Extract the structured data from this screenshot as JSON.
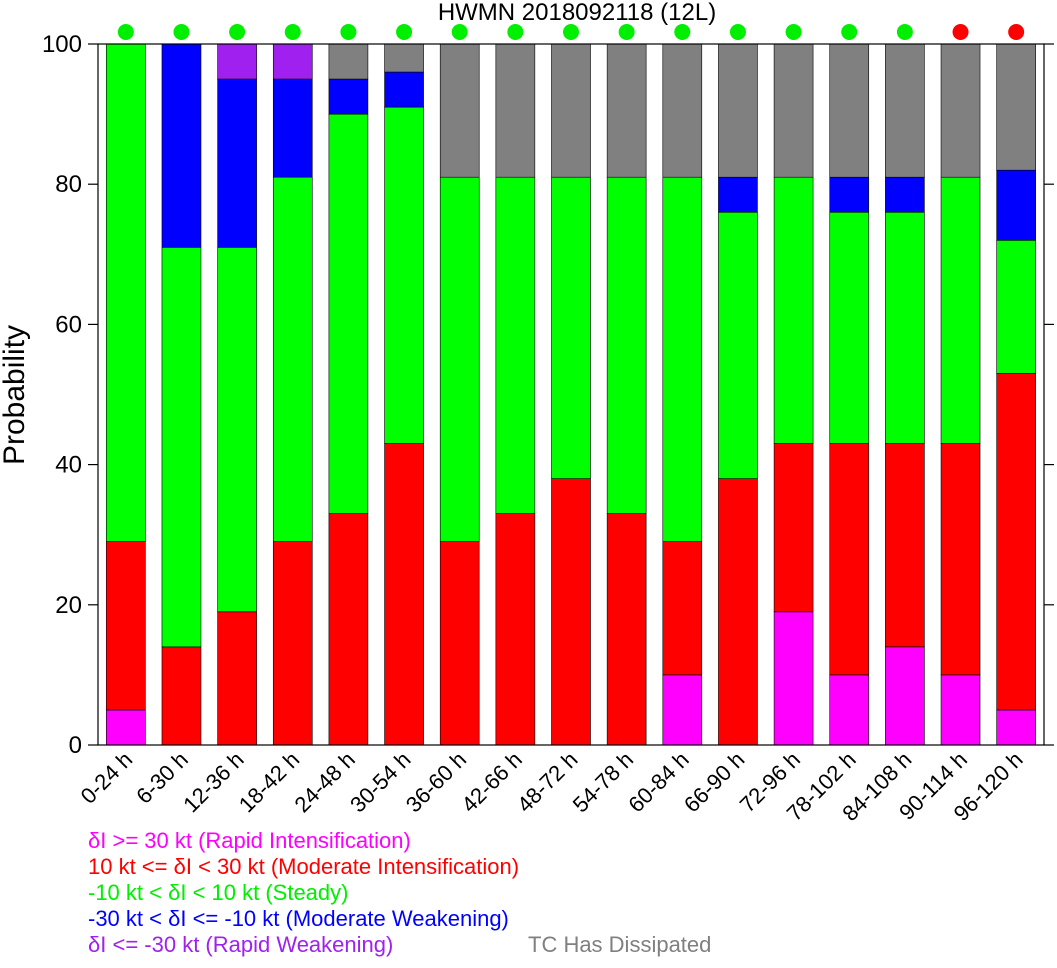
{
  "chart_data": {
    "type": "bar",
    "stacked": true,
    "title": "HWMN 2018092118  (12L)",
    "ylabel": "Probability",
    "xlabel": "",
    "ylim": [
      0,
      100
    ],
    "yticks": [
      0,
      20,
      40,
      60,
      80,
      100
    ],
    "categories": [
      "0-24 h",
      "6-30 h",
      "12-36 h",
      "18-42 h",
      "24-48 h",
      "30-54 h",
      "36-60 h",
      "42-66 h",
      "48-72 h",
      "54-78 h",
      "60-84 h",
      "66-90 h",
      "72-96 h",
      "78-102 h",
      "84-108 h",
      "90-114 h",
      "96-120 h"
    ],
    "series": [
      {
        "key": "ri",
        "color": "#ff00ff",
        "values": [
          5,
          0,
          0,
          0,
          0,
          0,
          0,
          0,
          0,
          0,
          10,
          0,
          19,
          10,
          14,
          10,
          5
        ]
      },
      {
        "key": "mi",
        "color": "#ff0000",
        "values": [
          24,
          14,
          19,
          29,
          33,
          43,
          29,
          33,
          38,
          33,
          19,
          38,
          24,
          33,
          29,
          33,
          48
        ]
      },
      {
        "key": "steady",
        "color": "#00ff00",
        "values": [
          71,
          57,
          52,
          52,
          57,
          48,
          52,
          48,
          43,
          48,
          52,
          38,
          38,
          33,
          33,
          38,
          19
        ]
      },
      {
        "key": "mw",
        "color": "#0000ff",
        "values": [
          0,
          29,
          24,
          14,
          5,
          5,
          0,
          0,
          0,
          0,
          0,
          5,
          0,
          5,
          5,
          0,
          10
        ]
      },
      {
        "key": "rw",
        "color": "#a020f0",
        "values": [
          0,
          0,
          5,
          5,
          0,
          0,
          0,
          0,
          0,
          0,
          0,
          0,
          0,
          0,
          0,
          0,
          0
        ]
      },
      {
        "key": "dissipated",
        "color": "#808080",
        "values": [
          0,
          0,
          0,
          0,
          5,
          4,
          19,
          19,
          19,
          19,
          19,
          19,
          19,
          19,
          19,
          19,
          18
        ]
      }
    ],
    "status_dots": [
      "green",
      "green",
      "green",
      "green",
      "green",
      "green",
      "green",
      "green",
      "green",
      "green",
      "green",
      "green",
      "green",
      "green",
      "green",
      "red",
      "red"
    ],
    "status_colors": {
      "green": "#00ee00",
      "red": "#ff0000"
    },
    "grid": false,
    "legend_placement": "bottom-left"
  },
  "legend": {
    "ri": "δI >= 30 kt (Rapid Intensification)",
    "mi": "10 kt <= δI < 30 kt (Moderate Intensification)",
    "steady": "-10 kt < δI < 10 kt (Steady)",
    "mw": "-30 kt < δI <= -10 kt (Moderate Weakening)",
    "rw": "δI <= -30 kt (Rapid Weakening)",
    "dissipated": "TC Has Dissipated"
  },
  "colors": {
    "ri": "#ff00ff",
    "mi": "#ff0000",
    "steady": "#00ff00",
    "mw": "#0000ff",
    "rw": "#a020f0",
    "dissipated": "#808080"
  }
}
